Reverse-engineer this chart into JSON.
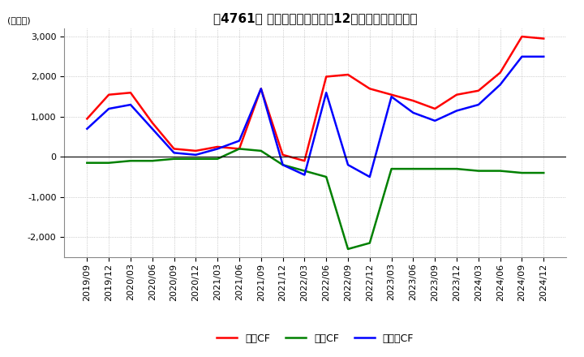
{
  "title": "、4761】 キャッシュフローの12か月移動合計の推移",
  "ylabel": "(百万円)",
  "ylim": [
    -2500,
    3200
  ],
  "yticks": [
    -2000,
    -1000,
    0,
    1000,
    2000,
    3000
  ],
  "dates": [
    "2019/09",
    "2019/12",
    "2020/03",
    "2020/06",
    "2020/09",
    "2020/12",
    "2021/03",
    "2021/06",
    "2021/09",
    "2021/12",
    "2022/03",
    "2022/06",
    "2022/09",
    "2022/12",
    "2023/03",
    "2023/06",
    "2023/09",
    "2023/12",
    "2024/03",
    "2024/06",
    "2024/09",
    "2024/12"
  ],
  "eigyo_cf": [
    950,
    1550,
    1600,
    850,
    200,
    150,
    250,
    200,
    1700,
    50,
    -100,
    2000,
    2050,
    1700,
    1550,
    1400,
    1200,
    1550,
    1650,
    2100,
    3000,
    2950
  ],
  "toshi_cf": [
    -150,
    -150,
    -100,
    -100,
    -50,
    -50,
    -50,
    200,
    150,
    -200,
    -350,
    -500,
    -2300,
    -2150,
    -300,
    -300,
    -300,
    -300,
    -350,
    -350,
    -400,
    -400
  ],
  "free_cf": [
    700,
    1200,
    1300,
    700,
    100,
    50,
    200,
    400,
    1700,
    -200,
    -450,
    1600,
    -200,
    -500,
    1500,
    1100,
    900,
    1150,
    1300,
    1800,
    2500,
    2500
  ],
  "color_eigyo": "#ff0000",
  "color_toshi": "#008000",
  "color_free": "#0000ff",
  "background_color": "#ffffff",
  "grid_color": "#aaaaaa",
  "legend_eigyo": "営業CF",
  "legend_toshi": "投資CF",
  "legend_free": "フリーCF"
}
